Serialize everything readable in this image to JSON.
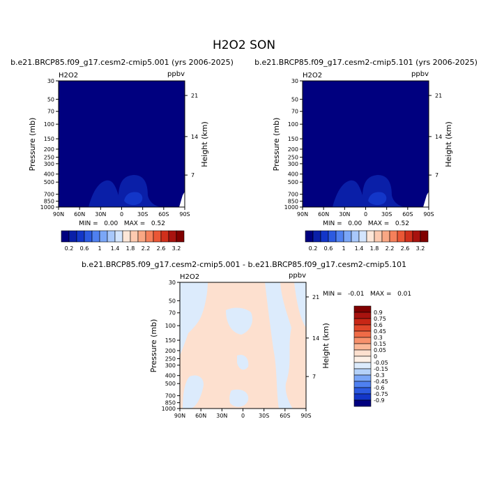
{
  "figure": {
    "title": "H2O2 SON"
  },
  "left_panel": {
    "title": "b.e21.BRCP85.f09_g17.cesm2-cmip5.001 (yrs 2006-2025)",
    "var_label": "H2O2",
    "units": "ppbv",
    "ylabel": "Pressure (mb)",
    "ylabel_right": "Height (km)",
    "stats": "MIN =   0.00   MAX =   0.52"
  },
  "right_panel": {
    "title": "b.e21.BRCP85.f09_g17.cesm2-cmip5.101 (yrs 2006-2025)",
    "var_label": "H2O2",
    "units": "ppbv",
    "ylabel": "Pressure (mb)",
    "ylabel_right": "Height (km)",
    "stats": "MIN =   0.00   MAX =   0.52"
  },
  "diff_panel": {
    "title": "b.e21.BRCP85.f09_g17.cesm2-cmip5.001 - b.e21.BRCP85.f09_g17.cesm2-cmip5.101",
    "var_label": "H2O2",
    "units": "ppbv",
    "ylabel": "Pressure (mb)",
    "ylabel_right": "Height (km)",
    "stats": "MIN =   -0.01   MAX =   0.01"
  },
  "chart_data": [
    {
      "type": "heatmap",
      "panel": "left",
      "x_ticks": [
        "90N",
        "60N",
        "30N",
        "0",
        "30S",
        "60S",
        "90S"
      ],
      "y_ticks": [
        "30",
        "50",
        "70",
        "100",
        "150",
        "200",
        "250",
        "300",
        "400",
        "500",
        "700",
        "850",
        "1000"
      ],
      "y_right_ticks": [
        "21",
        "14",
        "7"
      ],
      "ylim": [
        1000,
        30
      ],
      "ylog": true,
      "colorbar_labels": [
        "0.2",
        "0.6",
        "1",
        "1.4",
        "1.8",
        "2.2",
        "2.6",
        "3.2"
      ],
      "colorbar_colors": [
        "#00007f",
        "#0a1fa8",
        "#1336c8",
        "#2c5ae0",
        "#4f80f0",
        "#7aa6f7",
        "#a8c8fb",
        "#d3e5fd",
        "#fde7d8",
        "#fccab0",
        "#f9a784",
        "#f5805b",
        "#ea5736",
        "#d0301c",
        "#a8130f",
        "#800000"
      ],
      "min": 0.0,
      "max": 0.52
    },
    {
      "type": "heatmap",
      "panel": "right",
      "x_ticks": [
        "90N",
        "60N",
        "30N",
        "0",
        "30S",
        "60S",
        "90S"
      ],
      "y_ticks": [
        "30",
        "50",
        "70",
        "100",
        "150",
        "200",
        "250",
        "300",
        "400",
        "500",
        "700",
        "850",
        "1000"
      ],
      "y_right_ticks": [
        "21",
        "14",
        "7"
      ],
      "ylim": [
        1000,
        30
      ],
      "ylog": true,
      "colorbar_labels": [
        "0.2",
        "0.6",
        "1",
        "1.4",
        "1.8",
        "2.2",
        "2.6",
        "3.2"
      ],
      "colorbar_colors": [
        "#00007f",
        "#0a1fa8",
        "#1336c8",
        "#2c5ae0",
        "#4f80f0",
        "#7aa6f7",
        "#a8c8fb",
        "#d3e5fd",
        "#fde7d8",
        "#fccab0",
        "#f9a784",
        "#f5805b",
        "#ea5736",
        "#d0301c",
        "#a8130f",
        "#800000"
      ],
      "min": 0.0,
      "max": 0.52
    },
    {
      "type": "heatmap",
      "panel": "difference",
      "x_ticks": [
        "90N",
        "60N",
        "30N",
        "0",
        "30S",
        "60S",
        "90S"
      ],
      "y_ticks": [
        "30",
        "50",
        "70",
        "100",
        "150",
        "200",
        "250",
        "300",
        "400",
        "500",
        "700",
        "850",
        "1000"
      ],
      "y_right_ticks": [
        "21",
        "14",
        "7"
      ],
      "ylim": [
        1000,
        30
      ],
      "ylog": true,
      "colorbar_labels": [
        "0.9",
        "0.75",
        "0.6",
        "0.45",
        "0.3",
        "0.15",
        "0.05",
        "0",
        "-0.05",
        "-0.15",
        "-0.3",
        "-0.45",
        "-0.6",
        "-0.75",
        "-0.9"
      ],
      "colorbar_colors": [
        "#800000",
        "#a8130f",
        "#c82716",
        "#e0472a",
        "#ef6b47",
        "#f7916c",
        "#fbb898",
        "#fde0cf",
        "#fdf0e6",
        "#dcebfc",
        "#b5d2f9",
        "#7aa6f7",
        "#4f80f0",
        "#2c5ae0",
        "#1336c8",
        "#00007f"
      ],
      "min": -0.01,
      "max": 0.01
    }
  ]
}
